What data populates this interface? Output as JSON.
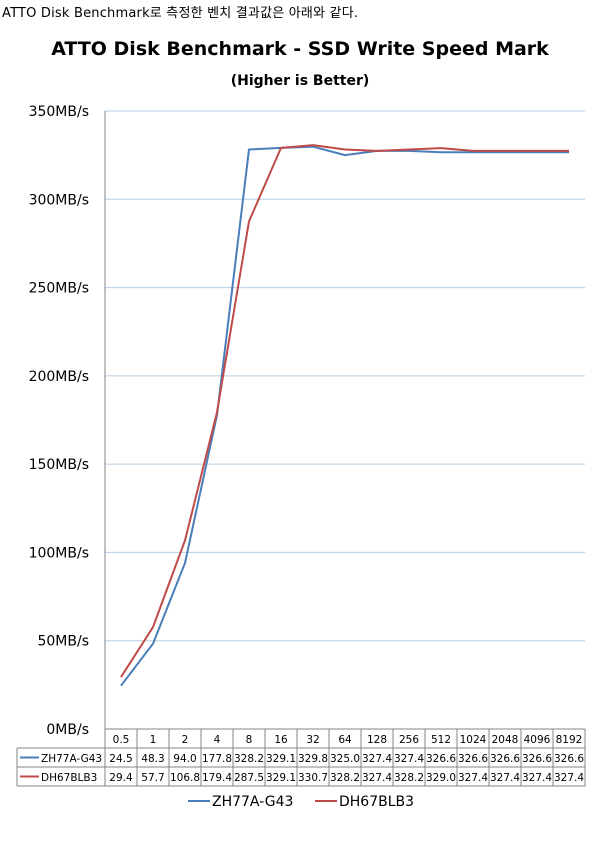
{
  "caption": "ATTO Disk Benchmark로 측정한 벤치 결과값은 아래와 같다.",
  "chart_data": {
    "type": "line",
    "title": "ATTO Disk Benchmark - SSD Write Speed Mark",
    "subtitle": "(Higher is Better)",
    "categories": [
      "0.5",
      "1",
      "2",
      "4",
      "8",
      "16",
      "32",
      "64",
      "128",
      "256",
      "512",
      "1024",
      "2048",
      "4096",
      "8192"
    ],
    "ylim": [
      0,
      350
    ],
    "ytick_values": [
      0,
      50,
      100,
      150,
      200,
      250,
      300,
      350
    ],
    "ytick_labels": [
      "0MB/s",
      "50MB/s",
      "100MB/s",
      "150MB/s",
      "200MB/s",
      "250MB/s",
      "300MB/s",
      "350MB/s"
    ],
    "grid": true,
    "legend_position": "bottom",
    "series": [
      {
        "name": "ZH77A-G43",
        "color": "#4a7ebb",
        "values": [
          24.5,
          48.3,
          94.0,
          177.8,
          328.2,
          329.1,
          329.8,
          325.0,
          327.4,
          327.4,
          326.6,
          326.6,
          326.6,
          326.6,
          326.6
        ],
        "labels": [
          "24.5",
          "48.3",
          "94.0",
          "177.8",
          "328.2",
          "329.1",
          "329.8",
          "325.0",
          "327.4",
          "327.4",
          "326.6",
          "326.6",
          "326.6",
          "326.6",
          "326.6"
        ]
      },
      {
        "name": "DH67BLB3",
        "color": "#be4b48",
        "values": [
          29.4,
          57.7,
          106.8,
          179.4,
          287.5,
          329.1,
          330.7,
          328.2,
          327.4,
          328.2,
          329.0,
          327.4,
          327.4,
          327.4,
          327.4
        ],
        "labels": [
          "29.4",
          "57.7",
          "106.8",
          "179.4",
          "287.5",
          "329.1",
          "330.7",
          "328.2",
          "327.4",
          "328.2",
          "329.0",
          "327.4",
          "327.4",
          "327.4",
          "327.4"
        ]
      }
    ]
  }
}
